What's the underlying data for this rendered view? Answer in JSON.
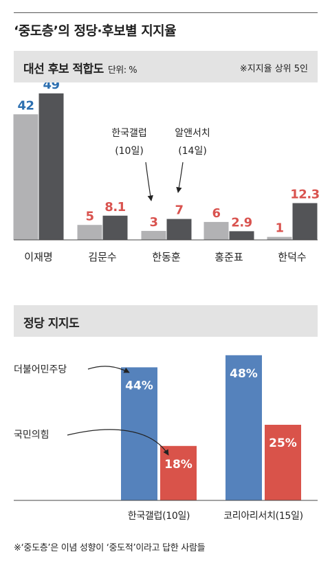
{
  "title": "‘중도층’의 정당·후보별 지지율",
  "footnote": "※‘중도층’은 이념 성향이 ‘중도적’이라고 답한 사람들",
  "colors": {
    "gray_light": "#b2b2b4",
    "gray_dark": "#535457",
    "blue_label": "#2c6fb0",
    "red_label": "#d9534f",
    "blue_bar": "#5582bc",
    "red_bar": "#d9534a",
    "band_bg": "#e3e3e3"
  },
  "chart_data": [
    {
      "type": "bar",
      "title": "대선 후보 적합도",
      "unit": "단위: %",
      "note": "※지지율 상위 5인",
      "categories": [
        "이재명",
        "김문수",
        "한동훈",
        "홍준표",
        "한덕수"
      ],
      "series": [
        {
          "name": "한국갤럽 (10일)",
          "values": [
            42,
            5,
            3,
            6,
            1
          ]
        },
        {
          "name": "알앤서치 (14일)",
          "values": [
            49,
            8.1,
            7,
            2.9,
            12.3
          ]
        }
      ],
      "value_labels": [
        [
          "42",
          "5",
          "3",
          "6",
          "1"
        ],
        [
          "49",
          "8.1",
          "7",
          "2.9",
          "12.3"
        ]
      ],
      "annotations": [
        {
          "lines": [
            "한국갤럽",
            "(10일)"
          ],
          "target": "한동훈"
        },
        {
          "lines": [
            "알앤서치",
            "(14일)"
          ],
          "target": "한동훈"
        }
      ],
      "legend": "annotated-arrows"
    },
    {
      "type": "bar",
      "title": "정당 지지도",
      "categories": [
        "한국갤럽(10일)",
        "코리아리서치(15일)"
      ],
      "series": [
        {
          "name": "더불어민주당",
          "values": [
            44,
            48
          ]
        },
        {
          "name": "국민의힘",
          "values": [
            18,
            25
          ]
        }
      ],
      "value_labels": [
        [
          "44%",
          "48%"
        ],
        [
          "18%",
          "25%"
        ]
      ],
      "legend": "left-annotated"
    }
  ]
}
